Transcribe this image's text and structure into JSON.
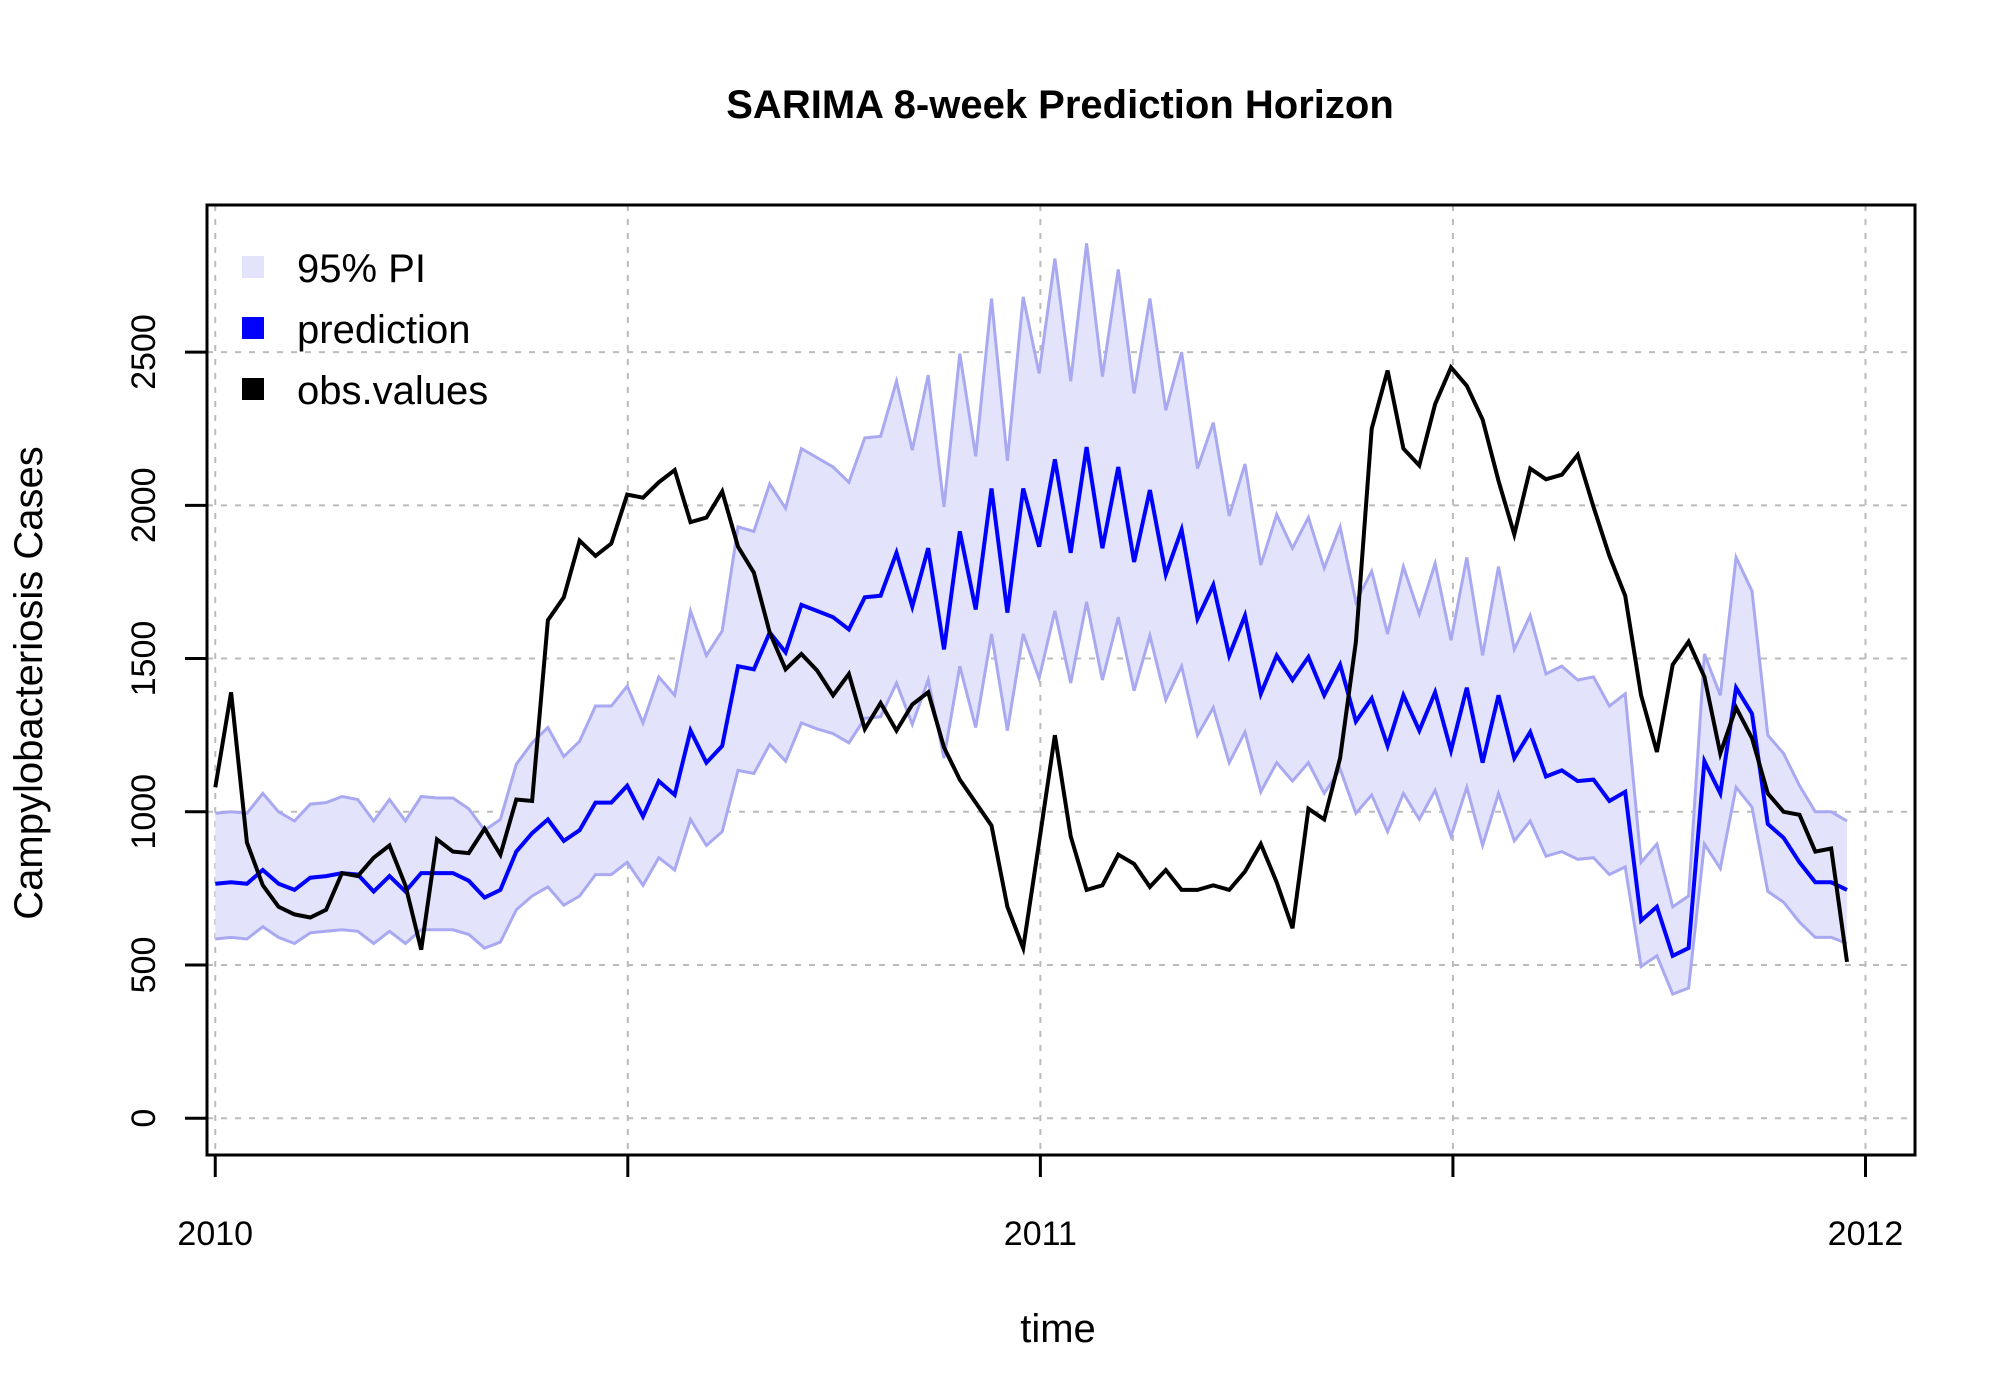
{
  "chart_data": {
    "type": "line",
    "title": "SARIMA 8-week Prediction Horizon",
    "xlabel": "time",
    "ylabel": "Campylobacteriosis Cases",
    "xlim": [
      2009.99,
      2012.06
    ],
    "ylim": [
      -120,
      2980
    ],
    "x_ticks": [
      2010,
      2010.5,
      2011,
      2011.5,
      2012
    ],
    "x_tick_labels": [
      "2010",
      "",
      "2011",
      "",
      "2012"
    ],
    "y_ticks": [
      0,
      500,
      1000,
      1500,
      2000,
      2500
    ],
    "y_tick_labels": [
      "0",
      "500",
      "1000",
      "1500",
      "2000",
      "2500"
    ],
    "grid": true,
    "legend": {
      "position": "top-left",
      "entries": [
        {
          "label": "95% PI",
          "color": "#e3e3fb"
        },
        {
          "label": "prediction",
          "color": "#0000ff"
        },
        {
          "label": "obs.values",
          "color": "#000000"
        }
      ]
    },
    "colors": {
      "band_fill": "#e3e3fb",
      "band_edge": "#a9a9f2",
      "prediction": "#0000ff",
      "observed": "#000000",
      "grid": "#bbbbbb"
    },
    "x_start": 2010.0,
    "x_step": 0.0192,
    "prediction": [
      765,
      770,
      765,
      810,
      765,
      745,
      785,
      790,
      800,
      795,
      740,
      790,
      740,
      800,
      800,
      800,
      775,
      720,
      745,
      870,
      930,
      975,
      905,
      940,
      1030,
      1030,
      1085,
      985,
      1100,
      1055,
      1265,
      1160,
      1215,
      1475,
      1465,
      1585,
      1520,
      1675,
      1655,
      1635,
      1595,
      1700,
      1705,
      1845,
      1670,
      1860,
      1530,
      1915,
      1660,
      2055,
      1650,
      2055,
      1865,
      2150,
      1845,
      2190,
      1860,
      2125,
      1815,
      2050,
      1775,
      1920,
      1630,
      1740,
      1510,
      1640,
      1385,
      1510,
      1430,
      1505,
      1380,
      1480,
      1295,
      1370,
      1215,
      1380,
      1265,
      1390,
      1200,
      1405,
      1160,
      1380,
      1175,
      1260,
      1115,
      1135,
      1100,
      1105,
      1035,
      1065,
      645,
      690,
      530,
      555,
      1165,
      1060,
      1405,
      1320,
      960,
      915,
      835,
      770,
      770,
      745
    ],
    "upper": [
      995,
      1000,
      995,
      1060,
      1000,
      970,
      1025,
      1030,
      1050,
      1040,
      970,
      1040,
      970,
      1050,
      1045,
      1045,
      1010,
      940,
      975,
      1155,
      1225,
      1275,
      1180,
      1230,
      1345,
      1345,
      1410,
      1290,
      1440,
      1380,
      1655,
      1510,
      1590,
      1930,
      1915,
      2070,
      1990,
      2185,
      2155,
      2125,
      2075,
      2220,
      2225,
      2405,
      2180,
      2425,
      1995,
      2495,
      2160,
      2675,
      2145,
      2680,
      2430,
      2805,
      2405,
      2855,
      2420,
      2770,
      2365,
      2675,
      2310,
      2500,
      2120,
      2270,
      1965,
      2135,
      1805,
      1970,
      1860,
      1960,
      1795,
      1930,
      1685,
      1785,
      1580,
      1800,
      1645,
      1810,
      1560,
      1830,
      1510,
      1800,
      1530,
      1640,
      1450,
      1475,
      1430,
      1440,
      1345,
      1385,
      835,
      895,
      690,
      725,
      1515,
      1380,
      1830,
      1720,
      1250,
      1190,
      1085,
      1000,
      1000,
      970
    ],
    "lower": [
      585,
      590,
      585,
      625,
      590,
      570,
      605,
      610,
      615,
      610,
      570,
      610,
      570,
      615,
      615,
      615,
      600,
      555,
      575,
      680,
      725,
      755,
      695,
      725,
      795,
      795,
      835,
      760,
      850,
      810,
      975,
      890,
      935,
      1135,
      1125,
      1220,
      1165,
      1290,
      1270,
      1255,
      1225,
      1305,
      1310,
      1420,
      1285,
      1430,
      1175,
      1475,
      1275,
      1580,
      1265,
      1580,
      1435,
      1655,
      1420,
      1685,
      1430,
      1635,
      1395,
      1575,
      1365,
      1475,
      1250,
      1340,
      1160,
      1260,
      1065,
      1160,
      1100,
      1160,
      1060,
      1140,
      995,
      1055,
      935,
      1060,
      975,
      1070,
      920,
      1080,
      890,
      1060,
      905,
      970,
      855,
      870,
      845,
      850,
      795,
      820,
      495,
      530,
      405,
      425,
      895,
      815,
      1080,
      1015,
      740,
      705,
      640,
      590,
      590,
      570
    ],
    "observed": [
      1080,
      1390,
      900,
      760,
      690,
      665,
      655,
      680,
      800,
      790,
      850,
      890,
      760,
      550,
      910,
      870,
      865,
      945,
      860,
      1040,
      1035,
      1625,
      1700,
      1885,
      1835,
      1875,
      2035,
      2025,
      2075,
      2115,
      1945,
      1960,
      2045,
      1865,
      1780,
      1585,
      1465,
      1515,
      1460,
      1380,
      1450,
      1270,
      1355,
      1265,
      1350,
      1390,
      1210,
      1105,
      1030,
      955,
      690,
      555,
      900,
      1250,
      920,
      745,
      760,
      860,
      830,
      755,
      810,
      745,
      745,
      760,
      745,
      805,
      895,
      770,
      620,
      1010,
      975,
      1175,
      1555,
      2250,
      2440,
      2185,
      2130,
      2330,
      2450,
      2390,
      2280,
      2080,
      1905,
      2120,
      2085,
      2100,
      2165,
      1995,
      1835,
      1705,
      1380,
      1195,
      1480,
      1555,
      1440,
      1190,
      1340,
      1240,
      1060,
      1000,
      990,
      870,
      880,
      510
    ]
  }
}
